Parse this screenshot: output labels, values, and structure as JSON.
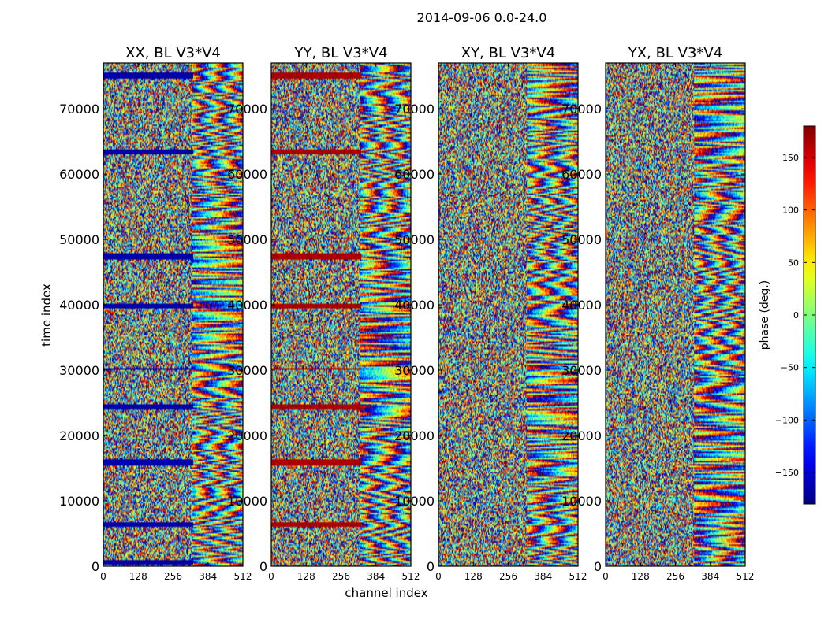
{
  "chart_data": {
    "type": "heatmap",
    "suptitle": "2014-09-06 0.0-24.0",
    "xlabel": "channel index",
    "ylabel": "time index",
    "xlim": [
      0,
      512
    ],
    "ylim": [
      0,
      77000
    ],
    "xticks": [
      0,
      128,
      256,
      384,
      512
    ],
    "yticks": [
      0,
      10000,
      20000,
      30000,
      40000,
      50000,
      60000,
      70000
    ],
    "panels": [
      {
        "title": "XX, BL V3*V4",
        "pol": "XX",
        "bands": [
          [
            300,
            1000
          ],
          [
            6000,
            6800
          ],
          [
            15500,
            16300
          ],
          [
            24000,
            24800
          ],
          [
            30000,
            30400
          ],
          [
            39500,
            40100
          ],
          [
            47000,
            47800
          ],
          [
            63000,
            63800
          ],
          [
            74500,
            75500
          ]
        ],
        "band_phase": -165
      },
      {
        "title": "YY, BL V3*V4",
        "pol": "YY",
        "bands": [
          [
            6000,
            6800
          ],
          [
            15500,
            16300
          ],
          [
            24000,
            24800
          ],
          [
            30000,
            30400
          ],
          [
            39500,
            40100
          ],
          [
            47000,
            47800
          ],
          [
            63000,
            63800
          ],
          [
            74500,
            75500
          ]
        ],
        "band_phase": 165
      },
      {
        "title": "XY, BL V3*V4",
        "pol": "XY",
        "bands": [],
        "band_phase": 0
      },
      {
        "title": "YX, BL V3*V4",
        "pol": "YX",
        "bands": [],
        "band_phase": 0
      }
    ],
    "colorbar": {
      "label": "phase (deg.)",
      "range": [
        -180,
        180
      ],
      "ticks": [
        -150,
        -100,
        -50,
        0,
        50,
        100,
        150
      ],
      "colormap": "jet"
    }
  }
}
